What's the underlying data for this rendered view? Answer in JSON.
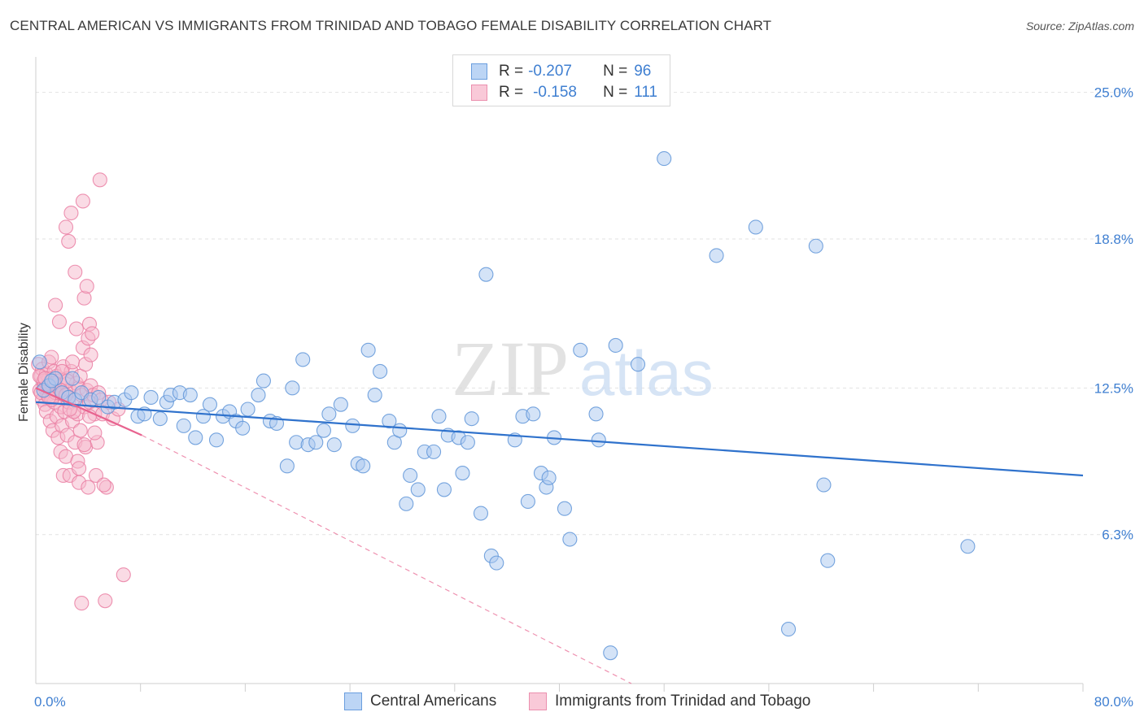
{
  "header": {
    "title": "CENTRAL AMERICAN VS IMMIGRANTS FROM TRINIDAD AND TOBAGO FEMALE DISABILITY CORRELATION CHART",
    "source": "Source: ZipAtlas.com"
  },
  "watermark": {
    "zip": "ZIP",
    "atlas": "atlas"
  },
  "legend": {
    "r_label": "R =",
    "n_label": "N =",
    "series": [
      {
        "r": "-0.207",
        "n": "96"
      },
      {
        "r": "-0.158",
        "n": "111"
      }
    ]
  },
  "bottom_legend": {
    "items": [
      "Central Americans",
      "Immigrants from Trinidad and Tobago"
    ]
  },
  "colors": {
    "blue_fill": "#a9c8f0",
    "blue_stroke": "#5f95d8",
    "blue_line": "#2f72cc",
    "pink_fill": "#f6b8cc",
    "pink_stroke": "#ea7fa3",
    "pink_line": "#e8638f",
    "axis_text": "#3f7fd1"
  },
  "chart_data": {
    "type": "scatter",
    "ylabel": "Female Disability",
    "xlim": [
      0,
      80
    ],
    "ylim": [
      0,
      26.5
    ],
    "y_ticks": [
      {
        "value": 6.3,
        "label": "6.3%"
      },
      {
        "value": 12.5,
        "label": "12.5%"
      },
      {
        "value": 18.8,
        "label": "18.8%"
      },
      {
        "value": 25.0,
        "label": "25.0%"
      }
    ],
    "x_tick_labels": [
      {
        "value": 0,
        "label": "0.0%"
      },
      {
        "value": 80,
        "label": "80.0%"
      }
    ],
    "x_minor_ticks": [
      8,
      16,
      24,
      32,
      40,
      48,
      56,
      64,
      72,
      80
    ],
    "grid": true,
    "legend_position": "top-center",
    "series": [
      {
        "name": "Central Americans",
        "color": "blue",
        "trend": {
          "x0": 0,
          "y0": 11.9,
          "x1": 80,
          "y1": 8.8,
          "dashed_extension": false
        },
        "points": [
          [
            0.3,
            13.6
          ],
          [
            0.6,
            12.4
          ],
          [
            1.0,
            12.6
          ],
          [
            1.5,
            12.9
          ],
          [
            2.0,
            12.3
          ],
          [
            2.5,
            12.1
          ],
          [
            3.0,
            12.0
          ],
          [
            3.5,
            12.3
          ],
          [
            4.2,
            12.0
          ],
          [
            4.8,
            12.1
          ],
          [
            5.5,
            11.7
          ],
          [
            6.0,
            11.9
          ],
          [
            6.8,
            12.0
          ],
          [
            7.3,
            12.3
          ],
          [
            7.8,
            11.3
          ],
          [
            8.3,
            11.4
          ],
          [
            8.8,
            12.1
          ],
          [
            9.5,
            11.2
          ],
          [
            10.0,
            11.9
          ],
          [
            10.3,
            12.2
          ],
          [
            11.0,
            12.3
          ],
          [
            11.3,
            10.9
          ],
          [
            11.8,
            12.2
          ],
          [
            12.2,
            10.4
          ],
          [
            12.8,
            11.3
          ],
          [
            13.3,
            11.8
          ],
          [
            13.8,
            10.3
          ],
          [
            14.3,
            11.3
          ],
          [
            14.8,
            11.5
          ],
          [
            15.3,
            11.1
          ],
          [
            15.8,
            10.8
          ],
          [
            16.2,
            11.6
          ],
          [
            17.0,
            12.2
          ],
          [
            17.4,
            12.8
          ],
          [
            17.9,
            11.1
          ],
          [
            18.4,
            11.0
          ],
          [
            19.2,
            9.2
          ],
          [
            19.6,
            12.5
          ],
          [
            19.9,
            10.2
          ],
          [
            20.4,
            13.7
          ],
          [
            20.8,
            10.1
          ],
          [
            21.4,
            10.2
          ],
          [
            22.0,
            10.7
          ],
          [
            22.4,
            11.4
          ],
          [
            22.8,
            10.1
          ],
          [
            23.3,
            11.8
          ],
          [
            24.2,
            10.9
          ],
          [
            24.6,
            9.3
          ],
          [
            25.0,
            9.2
          ],
          [
            25.4,
            14.1
          ],
          [
            25.9,
            12.2
          ],
          [
            26.3,
            13.2
          ],
          [
            27.0,
            11.1
          ],
          [
            27.4,
            10.2
          ],
          [
            27.8,
            10.7
          ],
          [
            28.3,
            7.6
          ],
          [
            28.6,
            8.8
          ],
          [
            29.2,
            8.2
          ],
          [
            29.7,
            9.8
          ],
          [
            30.4,
            9.8
          ],
          [
            30.8,
            11.3
          ],
          [
            31.2,
            8.2
          ],
          [
            31.5,
            10.5
          ],
          [
            32.3,
            10.4
          ],
          [
            32.6,
            8.9
          ],
          [
            33.0,
            10.2
          ],
          [
            33.3,
            11.2
          ],
          [
            34.0,
            7.2
          ],
          [
            34.4,
            17.3
          ],
          [
            34.8,
            5.4
          ],
          [
            35.2,
            5.1
          ],
          [
            36.6,
            10.3
          ],
          [
            37.2,
            11.3
          ],
          [
            37.6,
            7.7
          ],
          [
            38.0,
            11.4
          ],
          [
            38.6,
            8.9
          ],
          [
            39.0,
            8.3
          ],
          [
            39.2,
            8.7
          ],
          [
            39.6,
            10.4
          ],
          [
            40.4,
            7.4
          ],
          [
            40.8,
            6.1
          ],
          [
            41.6,
            14.1
          ],
          [
            42.8,
            11.4
          ],
          [
            43.0,
            10.3
          ],
          [
            44.3,
            14.3
          ],
          [
            46.0,
            13.5
          ],
          [
            48.0,
            22.2
          ],
          [
            52.0,
            18.1
          ],
          [
            55.0,
            19.3
          ],
          [
            59.6,
            18.5
          ],
          [
            60.2,
            8.4
          ],
          [
            60.5,
            5.2
          ],
          [
            1.2,
            12.8
          ],
          [
            2.8,
            12.9
          ],
          [
            57.5,
            2.3
          ],
          [
            71.2,
            5.8
          ],
          [
            43.9,
            1.3
          ]
        ]
      },
      {
        "name": "Immigrants from Trinidad and Tobago",
        "color": "pink",
        "trend": {
          "x0": 0,
          "y0": 12.5,
          "x1": 8.1,
          "y1": 10.5,
          "dashed_x1": 45.5,
          "dashed_y1": 0
        },
        "points": [
          [
            0.2,
            13.5
          ],
          [
            0.3,
            12.4
          ],
          [
            0.4,
            13.0
          ],
          [
            0.5,
            12.0
          ],
          [
            0.5,
            13.3
          ],
          [
            0.6,
            12.7
          ],
          [
            0.7,
            11.8
          ],
          [
            0.7,
            12.5
          ],
          [
            0.8,
            13.1
          ],
          [
            0.8,
            11.5
          ],
          [
            0.9,
            12.2
          ],
          [
            1.0,
            13.6
          ],
          [
            1.0,
            12.9
          ],
          [
            1.1,
            12.4
          ],
          [
            1.1,
            11.1
          ],
          [
            1.2,
            13.8
          ],
          [
            1.2,
            12.6
          ],
          [
            1.3,
            12.1
          ],
          [
            1.3,
            10.7
          ],
          [
            1.4,
            13.2
          ],
          [
            1.4,
            11.9
          ],
          [
            1.5,
            12.5
          ],
          [
            1.5,
            16.0
          ],
          [
            1.6,
            13.0
          ],
          [
            1.6,
            11.3
          ],
          [
            1.7,
            12.3
          ],
          [
            1.7,
            10.4
          ],
          [
            1.8,
            12.8
          ],
          [
            1.8,
            15.3
          ],
          [
            1.9,
            11.7
          ],
          [
            1.9,
            9.8
          ],
          [
            2.0,
            12.6
          ],
          [
            2.0,
            10.9
          ],
          [
            2.1,
            13.4
          ],
          [
            2.1,
            8.8
          ],
          [
            2.2,
            12.2
          ],
          [
            2.2,
            11.5
          ],
          [
            2.3,
            19.3
          ],
          [
            2.3,
            9.6
          ],
          [
            2.4,
            12.9
          ],
          [
            2.4,
            10.5
          ],
          [
            2.5,
            18.7
          ],
          [
            2.5,
            11.9
          ],
          [
            2.6,
            12.4
          ],
          [
            2.6,
            8.8
          ],
          [
            2.7,
            19.9
          ],
          [
            2.7,
            13.2
          ],
          [
            2.8,
            11.1
          ],
          [
            2.8,
            13.6
          ],
          [
            2.9,
            12.0
          ],
          [
            3.0,
            17.4
          ],
          [
            3.0,
            10.2
          ],
          [
            3.1,
            12.7
          ],
          [
            3.1,
            15.0
          ],
          [
            3.2,
            11.4
          ],
          [
            3.2,
            9.4
          ],
          [
            3.3,
            12.5
          ],
          [
            3.3,
            8.5
          ],
          [
            3.4,
            13.0
          ],
          [
            3.4,
            10.7
          ],
          [
            3.5,
            3.4
          ],
          [
            3.5,
            12.2
          ],
          [
            3.6,
            20.4
          ],
          [
            3.6,
            14.2
          ],
          [
            3.7,
            11.7
          ],
          [
            3.7,
            16.3
          ],
          [
            3.8,
            13.5
          ],
          [
            3.8,
            10.0
          ],
          [
            3.9,
            16.8
          ],
          [
            3.9,
            12.4
          ],
          [
            4.0,
            8.3
          ],
          [
            4.0,
            14.6
          ],
          [
            4.1,
            15.2
          ],
          [
            4.1,
            11.9
          ],
          [
            4.2,
            13.9
          ],
          [
            4.2,
            12.6
          ],
          [
            4.3,
            14.8
          ],
          [
            4.4,
            12.2
          ],
          [
            4.5,
            11.4
          ],
          [
            4.6,
            8.8
          ],
          [
            4.7,
            10.2
          ],
          [
            4.8,
            12.3
          ],
          [
            4.9,
            21.3
          ],
          [
            5.0,
            12.0
          ],
          [
            5.1,
            11.4
          ],
          [
            5.3,
            3.5
          ],
          [
            5.4,
            8.3
          ],
          [
            5.6,
            11.9
          ],
          [
            5.9,
            11.2
          ],
          [
            6.3,
            11.6
          ],
          [
            6.7,
            4.6
          ],
          [
            0.4,
            12.3
          ],
          [
            0.6,
            12.8
          ],
          [
            0.9,
            12.6
          ],
          [
            1.2,
            12.0
          ],
          [
            1.5,
            12.3
          ],
          [
            2.0,
            13.2
          ],
          [
            2.4,
            12.8
          ],
          [
            2.9,
            11.5
          ],
          [
            3.3,
            9.1
          ],
          [
            3.7,
            10.1
          ],
          [
            4.1,
            11.3
          ],
          [
            4.5,
            10.6
          ],
          [
            5.2,
            8.4
          ],
          [
            0.3,
            13.0
          ],
          [
            0.7,
            12.9
          ],
          [
            1.0,
            12.1
          ],
          [
            1.4,
            12.7
          ],
          [
            1.9,
            12.4
          ],
          [
            2.3,
            12.2
          ],
          [
            2.6,
            11.6
          ]
        ]
      }
    ]
  }
}
